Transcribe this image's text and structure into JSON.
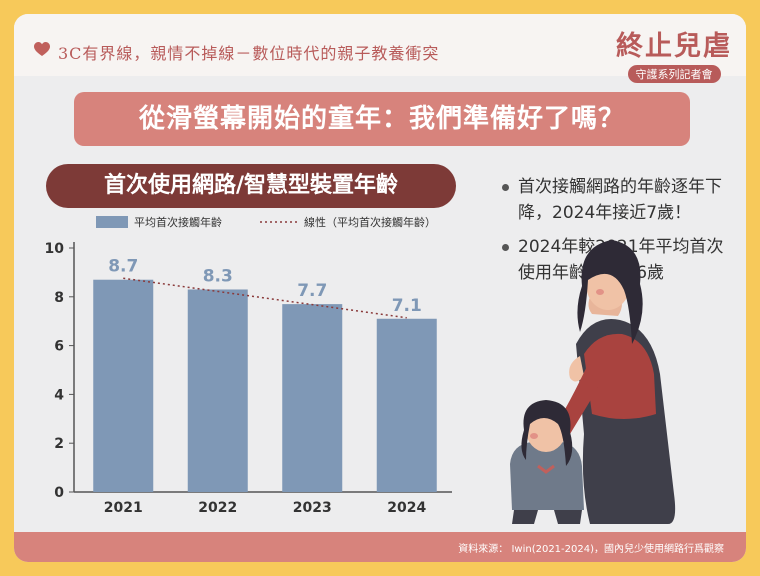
{
  "header": {
    "tagline": "3C有界線，親情不掉線－數位時代的親子教養衝突",
    "logo_text": "終止兒虐",
    "logo_sub": "守護系列記者會"
  },
  "title": "從滑螢幕開始的童年：我們準備好了嗎？",
  "chart_title": "首次使用網路/智慧型裝置年齡",
  "bullets": [
    "首次接觸網路的年齡逐年下降，2024年接近7歲！",
    "2024年較2021年平均首次使用年齡下降1.6歲"
  ],
  "footer": {
    "source": "資料來源： Iwin(2021-2024)，國內兒少使用網路行爲觀察"
  },
  "colors": {
    "bar": "#7f98b6",
    "accent": "#d7837c",
    "dark": "#7d3a37",
    "background": "#f7c95a"
  },
  "chart_data": {
    "type": "bar",
    "categories": [
      "2021",
      "2022",
      "2023",
      "2024"
    ],
    "series": [
      {
        "name": "平均首次接觸年齡",
        "values": [
          8.7,
          8.3,
          7.7,
          7.1
        ]
      }
    ],
    "trendline": {
      "name": "線性（平均首次接觸年齡）",
      "style": "dotted"
    },
    "data_labels": [
      "8.7",
      "8.3",
      "7.7",
      "7.1"
    ],
    "yticks": [
      0,
      2,
      4,
      6,
      8,
      10
    ],
    "ylim": [
      0,
      10
    ],
    "xlabel": "",
    "ylabel": "",
    "legend": "top",
    "grid": false
  }
}
